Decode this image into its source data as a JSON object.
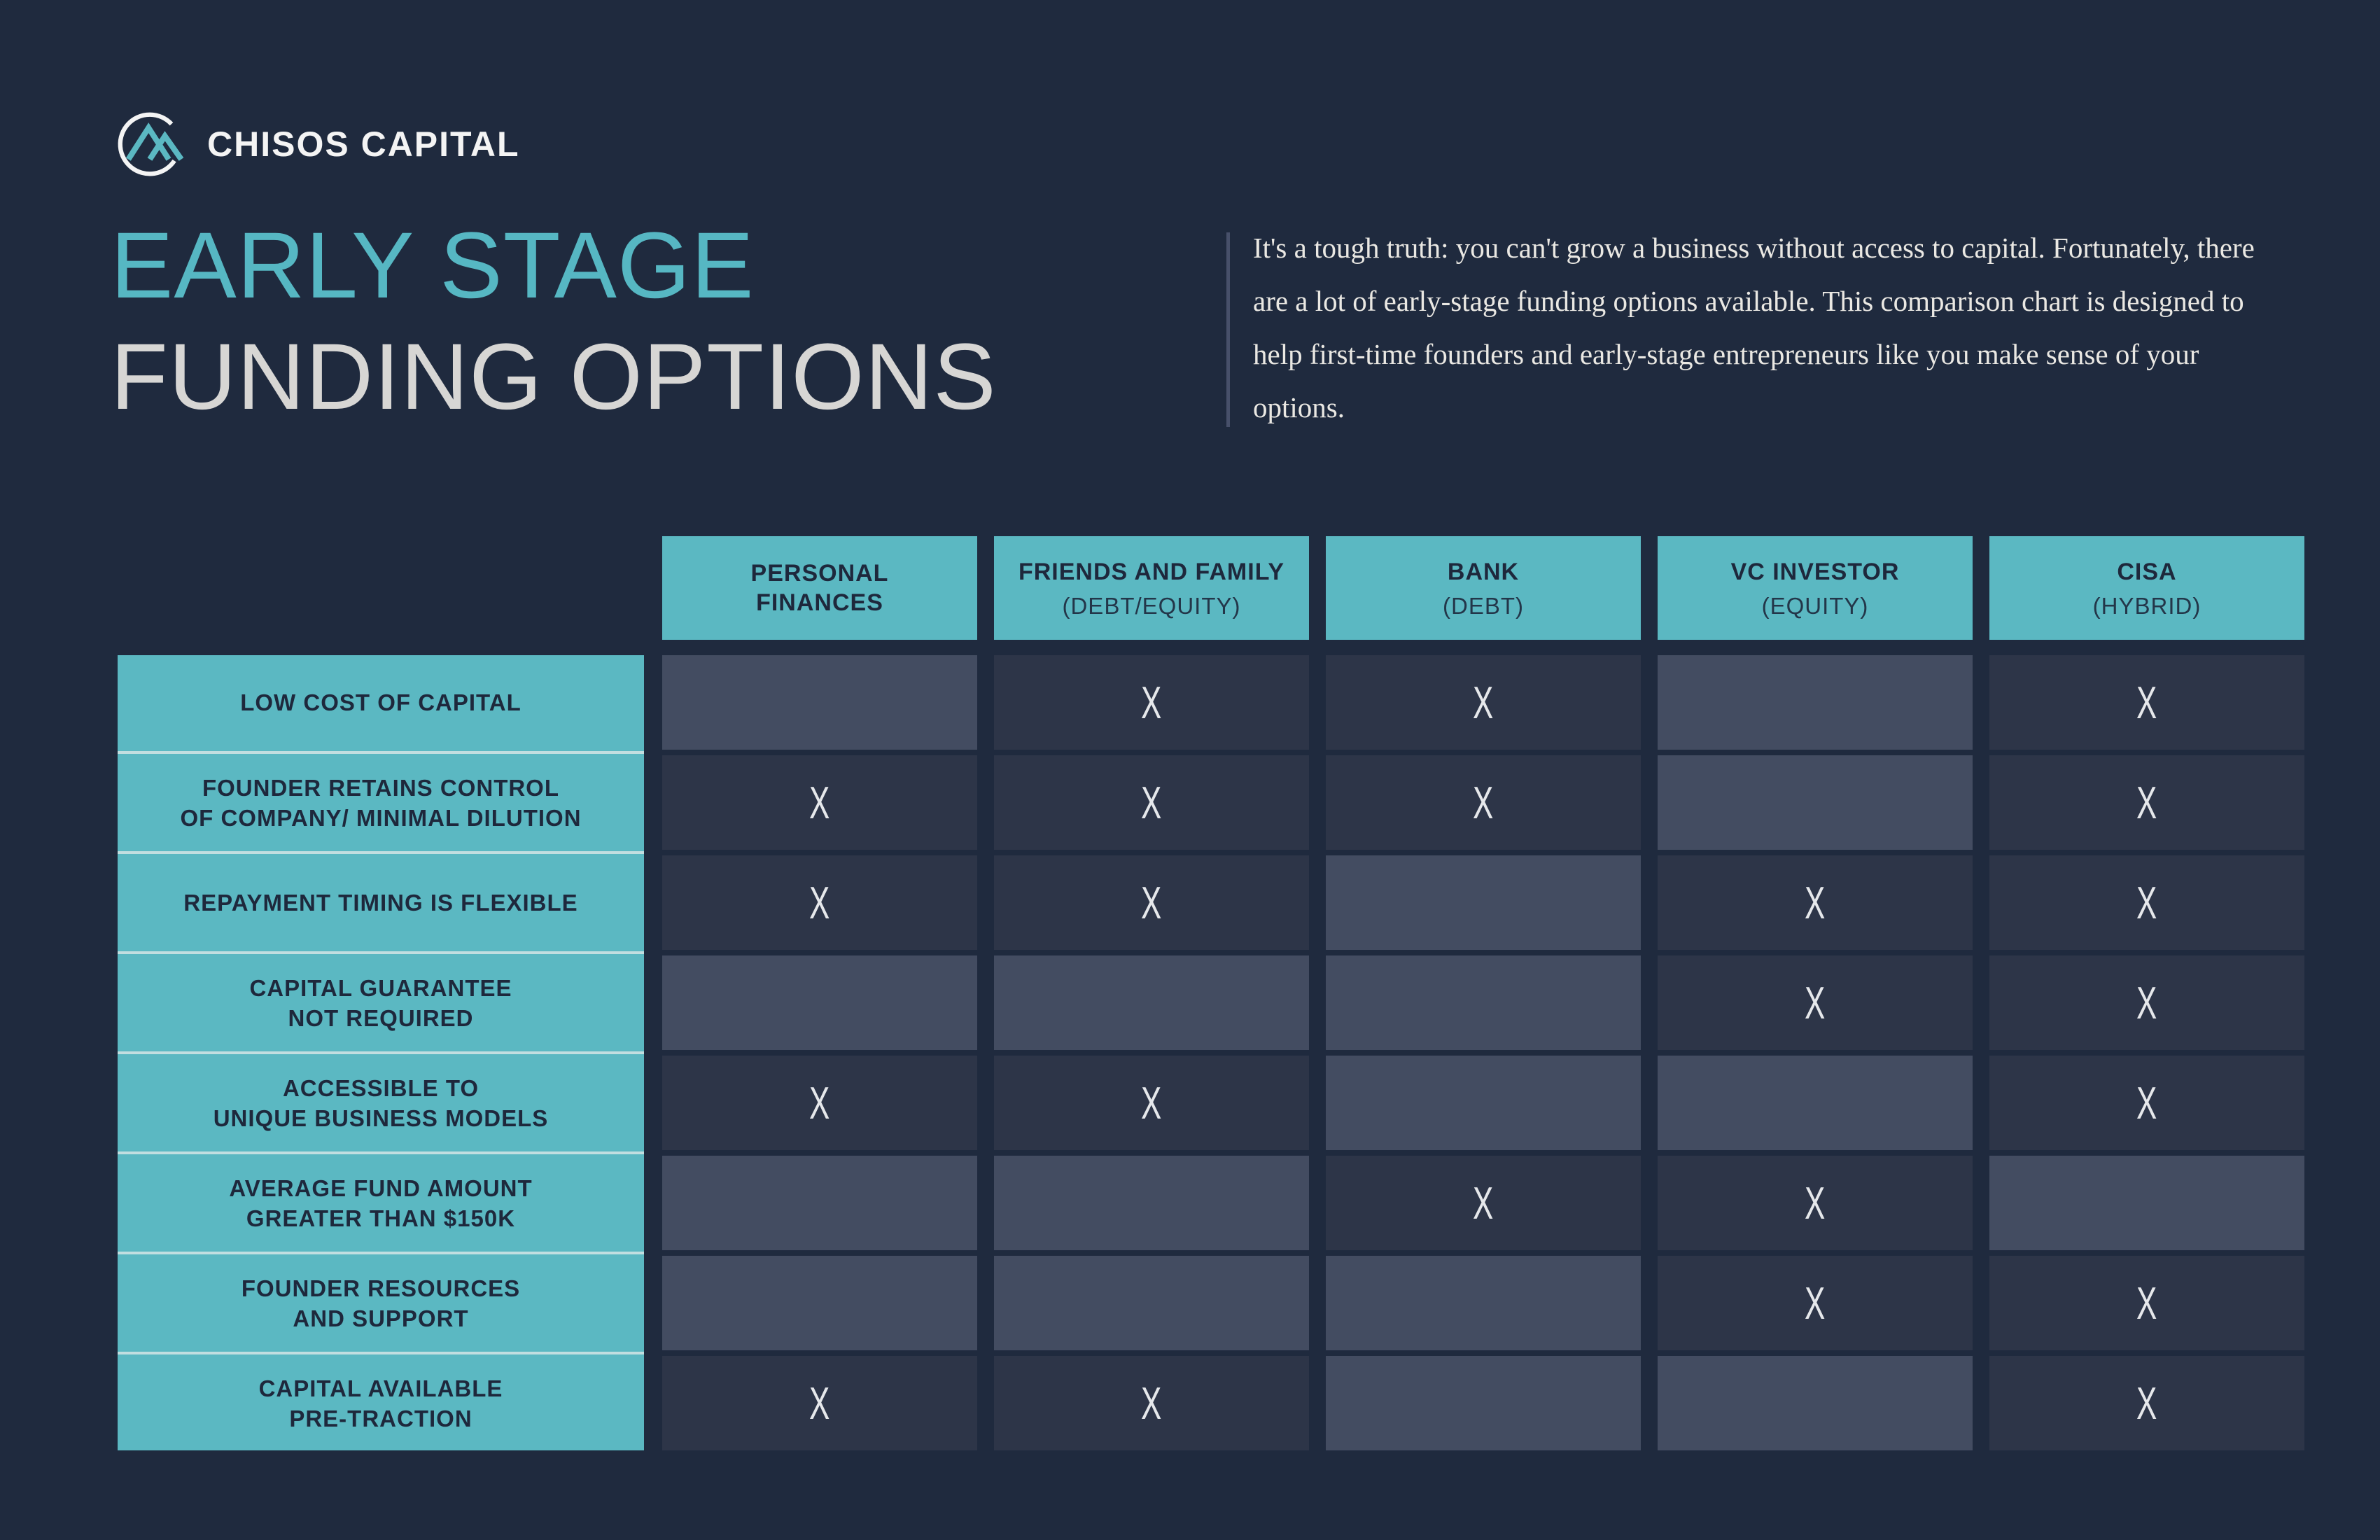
{
  "brand": {
    "name": "CHISOS CAPITAL",
    "icon": "mountain-circle-logo"
  },
  "title": {
    "line1": "EARLY STAGE",
    "line2": "FUNDING OPTIONS"
  },
  "intro": {
    "text": "It's a tough truth: you can't grow a business without access to capital. Fortunately, there are a lot of early-stage funding options available. This comparison chart is designed to help first-time founders and early-stage entrepreneurs like you make sense of your options."
  },
  "chart_data": {
    "type": "table",
    "title": "EARLY STAGE FUNDING OPTIONS",
    "mark_glyph": "X",
    "columns": [
      {
        "label": "PERSONAL\nFINANCES",
        "sub": ""
      },
      {
        "label": "FRIENDS AND FAMILY",
        "sub": "(DEBT/EQUITY)"
      },
      {
        "label": "BANK",
        "sub": "(DEBT)"
      },
      {
        "label": "VC INVESTOR",
        "sub": "(EQUITY)"
      },
      {
        "label": "CISA",
        "sub": "(HYBRID)"
      }
    ],
    "rows": [
      {
        "label": "LOW COST OF CAPITAL",
        "marks": [
          false,
          true,
          true,
          false,
          true
        ]
      },
      {
        "label": "FOUNDER RETAINS CONTROL\nOF COMPANY/ MINIMAL DILUTION",
        "marks": [
          true,
          true,
          true,
          false,
          true
        ]
      },
      {
        "label": "REPAYMENT TIMING IS FLEXIBLE",
        "marks": [
          true,
          true,
          false,
          true,
          true
        ]
      },
      {
        "label": "CAPITAL GUARANTEE\nNOT REQUIRED",
        "marks": [
          false,
          false,
          false,
          true,
          true
        ]
      },
      {
        "label": "ACCESSIBLE TO\nUNIQUE BUSINESS MODELS",
        "marks": [
          true,
          true,
          false,
          false,
          true
        ]
      },
      {
        "label": "AVERAGE FUND AMOUNT\nGREATER THAN $150K",
        "marks": [
          false,
          false,
          true,
          true,
          false
        ]
      },
      {
        "label": "FOUNDER RESOURCES\nAND SUPPORT",
        "marks": [
          false,
          false,
          false,
          true,
          true
        ]
      },
      {
        "label": "CAPITAL AVAILABLE\nPRE-TRACTION",
        "marks": [
          true,
          true,
          false,
          false,
          true
        ]
      }
    ]
  },
  "colors": {
    "background": "#1f2a3e",
    "teal": "#5bb8c2",
    "title_teal": "#56b7c3",
    "title_gray": "#d7d6d4",
    "cell_with_mark": "#2d3548",
    "cell_no_mark": "#434c61",
    "header_text": "#1e283c",
    "mark": "#eef0f2",
    "pale_separator": "#c2dee0",
    "divider": "#47506a",
    "intro_text": "#eae8e3",
    "brand_text": "#f4f4f4"
  }
}
